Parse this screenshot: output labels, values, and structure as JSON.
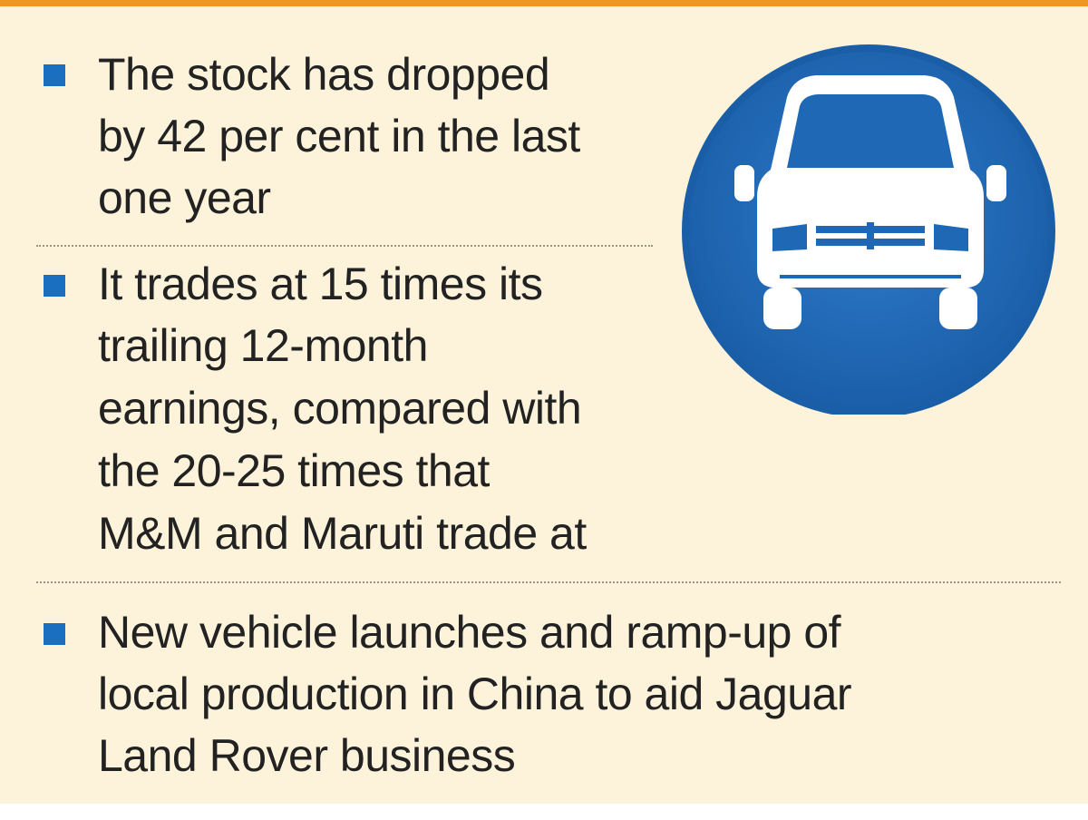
{
  "bullets": [
    {
      "lines": [
        "The stock has dropped",
        "by 42 per cent in the last",
        "one year"
      ]
    },
    {
      "lines": [
        "It trades at 15 times its",
        "trailing 12-month",
        "earnings, compared with",
        "the 20-25 times that",
        "M&M and Maruti trade at"
      ]
    },
    {
      "lines": [
        "New vehicle launches and ramp-up of",
        "local production in China to aid Jaguar",
        "Land Rover business"
      ]
    }
  ]
}
